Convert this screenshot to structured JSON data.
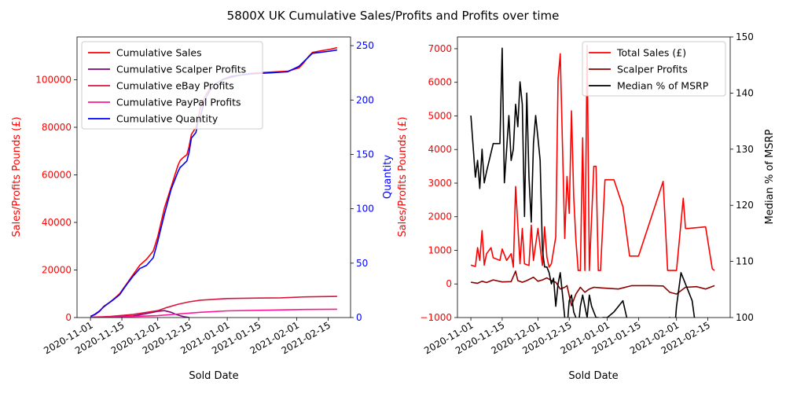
{
  "figure_title": "5800X UK Cumulative Sales/Profits and Profits over time",
  "colors": {
    "sales": "#ff0000",
    "scalper": "#800080",
    "ebay": "#dc143c",
    "paypal": "#ff1493",
    "quantity": "#0000ff",
    "total_sales": "#ff0000",
    "scalper_profit_right": "#8b0000",
    "median": "#000000"
  },
  "chart_data": [
    {
      "type": "line",
      "title": "",
      "xlabel": "Sold Date",
      "ylabel": "Sales/Profits Pounds (£)",
      "y2label": "Quantity",
      "xlim": [
        "2020-10-26",
        "2021-02-25"
      ],
      "ylim": [
        0,
        118000
      ],
      "y2lim": [
        0,
        258
      ],
      "x_ticks": [
        "2020-11-01",
        "2020-11-15",
        "2020-12-01",
        "2020-12-15",
        "2021-01-01",
        "2021-01-15",
        "2021-02-01",
        "2021-02-15"
      ],
      "y_ticks": [
        "0",
        "20000",
        "40000",
        "60000",
        "80000",
        "100000"
      ],
      "y2_ticks": [
        "0",
        "50",
        "100",
        "150",
        "200",
        "250"
      ],
      "legend_position": "upper-left",
      "series": [
        {
          "name": "Cumulative Sales",
          "axis": "left",
          "color_key": "sales",
          "x": [
            "2020-11-01",
            "2020-11-03",
            "2020-11-05",
            "2020-11-07",
            "2020-11-09",
            "2020-11-11",
            "2020-11-14",
            "2020-11-17",
            "2020-11-20",
            "2020-11-23",
            "2020-11-26",
            "2020-11-29",
            "2020-12-01",
            "2020-12-04",
            "2020-12-07",
            "2020-12-10",
            "2020-12-11",
            "2020-12-12",
            "2020-12-14",
            "2020-12-15",
            "2020-12-16",
            "2020-12-18",
            "2020-12-19",
            "2020-12-20",
            "2020-12-22",
            "2020-12-24",
            "2020-12-27",
            "2020-12-30",
            "2021-01-03",
            "2021-01-07",
            "2021-01-12",
            "2021-01-20",
            "2021-01-28",
            "2021-01-30",
            "2021-02-02",
            "2021-02-04",
            "2021-02-06",
            "2021-02-08",
            "2021-02-12",
            "2021-02-16",
            "2021-02-19"
          ],
          "values": [
            500,
            1200,
            2500,
            4800,
            6000,
            7500,
            10000,
            14000,
            18000,
            22000,
            24500,
            28000,
            34000,
            46000,
            55000,
            64000,
            66000,
            67000,
            68500,
            72000,
            77000,
            80000,
            84000,
            88000,
            93000,
            96000,
            98500,
            100000,
            101000,
            102000,
            102800,
            103200,
            103600,
            104200,
            105000,
            107000,
            109500,
            111500,
            112200,
            112800,
            113500
          ]
        },
        {
          "name": "Cumulative Scalper Profits",
          "axis": "left",
          "color_key": "scalper",
          "x": [
            "2020-11-01",
            "2020-11-10",
            "2020-11-20",
            "2020-11-25",
            "2020-12-01",
            "2020-12-04",
            "2020-12-07",
            "2020-12-09",
            "2020-12-11",
            "2020-12-13",
            "2020-12-15"
          ],
          "values": [
            100,
            300,
            700,
            1500,
            2600,
            2900,
            2200,
            1400,
            800,
            300,
            0
          ]
        },
        {
          "name": "Cumulative eBay Profits",
          "axis": "left",
          "color_key": "ebay",
          "x": [
            "2020-11-01",
            "2020-11-10",
            "2020-11-20",
            "2020-12-01",
            "2020-12-05",
            "2020-12-10",
            "2020-12-15",
            "2020-12-20",
            "2021-01-01",
            "2021-01-15",
            "2021-01-25",
            "2021-02-05",
            "2021-02-19"
          ],
          "values": [
            100,
            500,
            1300,
            2900,
            4200,
            5600,
            6600,
            7300,
            8000,
            8200,
            8300,
            8700,
            8900
          ]
        },
        {
          "name": "Cumulative PayPal Profits",
          "axis": "left",
          "color_key": "paypal",
          "x": [
            "2020-11-01",
            "2020-11-15",
            "2020-12-01",
            "2020-12-10",
            "2020-12-20",
            "2021-01-01",
            "2021-01-20",
            "2021-02-05",
            "2021-02-19"
          ],
          "values": [
            50,
            300,
            800,
            1500,
            2200,
            2800,
            3100,
            3400,
            3500
          ]
        },
        {
          "name": "Cumulative Quantity",
          "axis": "right",
          "color_key": "quantity",
          "x": [
            "2020-11-01",
            "2020-11-03",
            "2020-11-05",
            "2020-11-07",
            "2020-11-09",
            "2020-11-11",
            "2020-11-14",
            "2020-11-17",
            "2020-11-20",
            "2020-11-23",
            "2020-11-26",
            "2020-11-29",
            "2020-12-01",
            "2020-12-04",
            "2020-12-07",
            "2020-12-10",
            "2020-12-11",
            "2020-12-12",
            "2020-12-14",
            "2020-12-15",
            "2020-12-16",
            "2020-12-18",
            "2020-12-19",
            "2020-12-20",
            "2020-12-22",
            "2020-12-24",
            "2020-12-27",
            "2020-12-30",
            "2021-01-03",
            "2021-01-07",
            "2021-01-12",
            "2021-01-20",
            "2021-01-28",
            "2021-01-30",
            "2021-02-02",
            "2021-02-04",
            "2021-02-06",
            "2021-02-08",
            "2021-02-12",
            "2021-02-16",
            "2021-02-19"
          ],
          "values": [
            1,
            3,
            6,
            10,
            13,
            16,
            21,
            30,
            38,
            45,
            48,
            55,
            70,
            95,
            118,
            134,
            138,
            140,
            144,
            152,
            165,
            170,
            180,
            185,
            200,
            208,
            215,
            219,
            222,
            223,
            224,
            225,
            226,
            228,
            231,
            235,
            239,
            243,
            244,
            245,
            246
          ]
        }
      ]
    },
    {
      "type": "line",
      "title": "",
      "xlabel": "Sold Date",
      "ylabel": "Sales/Profits Pounds (£)",
      "y2label": "Median % of MSRP",
      "xlim": [
        "2020-10-26",
        "2021-02-25"
      ],
      "ylim": [
        -1000,
        7350
      ],
      "y2lim": [
        100,
        150
      ],
      "x_ticks": [
        "2020-11-01",
        "2020-11-15",
        "2020-12-01",
        "2020-12-15",
        "2021-01-01",
        "2021-01-15",
        "2021-02-01",
        "2021-02-15"
      ],
      "y_ticks": [
        "−1000",
        "0",
        "1000",
        "2000",
        "3000",
        "4000",
        "5000",
        "6000",
        "7000"
      ],
      "y2_ticks": [
        "100",
        "110",
        "120",
        "130",
        "140",
        "150"
      ],
      "legend_position": "upper-right",
      "series": [
        {
          "name": "Total Sales (£)",
          "axis": "left",
          "color_key": "total_sales",
          "x": [
            "2020-11-01",
            "2020-11-03",
            "2020-11-04",
            "2020-11-05",
            "2020-11-06",
            "2020-11-07",
            "2020-11-08",
            "2020-11-10",
            "2020-11-11",
            "2020-11-14",
            "2020-11-15",
            "2020-11-17",
            "2020-11-19",
            "2020-11-20",
            "2020-11-21",
            "2020-11-23",
            "2020-11-24",
            "2020-11-25",
            "2020-11-27",
            "2020-11-28",
            "2020-11-29",
            "2020-12-01",
            "2020-12-02",
            "2020-12-03",
            "2020-12-04",
            "2020-12-05",
            "2020-12-06",
            "2020-12-07",
            "2020-12-08",
            "2020-12-09",
            "2020-12-10",
            "2020-12-11",
            "2020-12-13",
            "2020-12-14",
            "2020-12-15",
            "2020-12-16",
            "2020-12-17",
            "2020-12-18",
            "2020-12-19",
            "2020-12-20",
            "2020-12-21",
            "2020-12-22",
            "2020-12-23",
            "2020-12-24",
            "2020-12-26",
            "2020-12-27",
            "2020-12-28",
            "2020-12-29",
            "2020-12-31",
            "2021-01-04",
            "2021-01-08",
            "2021-01-11",
            "2021-01-15",
            "2021-01-26",
            "2021-01-28",
            "2021-02-01",
            "2021-02-04",
            "2021-02-05",
            "2021-02-06",
            "2021-02-14",
            "2021-02-17",
            "2021-02-18"
          ],
          "values": [
            560,
            520,
            1080,
            700,
            1590,
            560,
            900,
            1080,
            780,
            700,
            1040,
            700,
            900,
            500,
            2900,
            600,
            1650,
            600,
            550,
            1750,
            700,
            1650,
            1100,
            550,
            1700,
            800,
            500,
            600,
            1000,
            1400,
            6100,
            6850,
            1350,
            3200,
            2100,
            5150,
            2600,
            1300,
            400,
            400,
            4350,
            400,
            7100,
            400,
            3500,
            3500,
            400,
            400,
            3100,
            3100,
            2300,
            830,
            830,
            3050,
            400,
            400,
            2550,
            1650,
            1650,
            1700,
            450,
            400
          ]
        },
        {
          "name": "Scalper Profits",
          "axis": "left",
          "color_key": "scalper_profit_right",
          "x": [
            "2020-11-01",
            "2020-11-04",
            "2020-11-06",
            "2020-11-08",
            "2020-11-11",
            "2020-11-15",
            "2020-11-19",
            "2020-11-21",
            "2020-11-22",
            "2020-11-24",
            "2020-11-26",
            "2020-11-29",
            "2020-12-01",
            "2020-12-03",
            "2020-12-05",
            "2020-12-07",
            "2020-12-09",
            "2020-12-11",
            "2020-12-13",
            "2020-12-14",
            "2020-12-16",
            "2020-12-18",
            "2020-12-20",
            "2020-12-22",
            "2020-12-24",
            "2020-12-26",
            "2020-12-30",
            "2021-01-06",
            "2021-01-12",
            "2021-01-20",
            "2021-01-26",
            "2021-01-29",
            "2021-02-01",
            "2021-02-05",
            "2021-02-10",
            "2021-02-14",
            "2021-02-18"
          ],
          "values": [
            50,
            20,
            80,
            40,
            120,
            60,
            70,
            380,
            100,
            50,
            100,
            200,
            80,
            120,
            180,
            100,
            50,
            -150,
            -100,
            -50,
            -650,
            -300,
            -100,
            -250,
            -150,
            -100,
            -120,
            -150,
            -50,
            -50,
            -60,
            -250,
            -300,
            -100,
            -80,
            -150,
            -50
          ]
        },
        {
          "name": "Median % of MSRP",
          "axis": "right",
          "color_key": "median",
          "x": [
            "2020-11-01",
            "2020-11-03",
            "2020-11-04",
            "2020-11-05",
            "2020-11-06",
            "2020-11-07",
            "2020-11-08",
            "2020-11-11",
            "2020-11-14",
            "2020-11-15",
            "2020-11-16",
            "2020-11-17",
            "2020-11-18",
            "2020-11-19",
            "2020-11-20",
            "2020-11-21",
            "2020-11-22",
            "2020-11-23",
            "2020-11-24",
            "2020-11-25",
            "2020-11-26",
            "2020-11-27",
            "2020-11-28",
            "2020-11-29",
            "2020-11-30",
            "2020-12-01",
            "2020-12-02",
            "2020-12-03",
            "2020-12-04",
            "2020-12-05",
            "2020-12-06",
            "2020-12-07",
            "2020-12-08",
            "2020-12-09",
            "2020-12-10",
            "2020-12-11",
            "2020-12-12",
            "2020-12-13",
            "2020-12-14",
            "2020-12-15",
            "2020-12-16",
            "2020-12-17",
            "2020-12-18",
            "2020-12-19",
            "2020-12-20",
            "2020-12-21",
            "2020-12-22",
            "2020-12-23",
            "2020-12-24",
            "2020-12-25",
            "2020-12-26",
            "2020-12-27",
            "2020-12-28",
            "2020-12-29",
            "2020-12-30",
            "2021-01-01",
            "2021-01-04",
            "2021-01-08",
            "2021-01-12",
            "2021-01-29",
            "2021-01-30",
            "2021-01-31",
            "2021-02-01",
            "2021-02-03",
            "2021-02-08",
            "2021-02-09"
          ],
          "values": [
            136,
            125,
            128,
            123,
            130,
            124,
            126,
            131,
            131,
            148,
            124,
            130,
            136,
            128,
            130,
            138,
            134,
            142,
            138,
            118,
            140,
            125,
            117,
            131,
            136,
            132,
            128,
            112,
            109,
            109,
            108,
            106,
            107,
            102,
            106,
            108,
            104,
            100,
            98,
            103,
            104,
            101,
            100,
            98,
            102,
            104,
            102,
            100,
            104,
            102,
            101,
            100,
            100,
            99,
            100,
            100,
            101,
            103,
            96,
            100,
            98,
            97,
            102,
            108,
            103,
            100
          ]
        }
      ]
    }
  ]
}
